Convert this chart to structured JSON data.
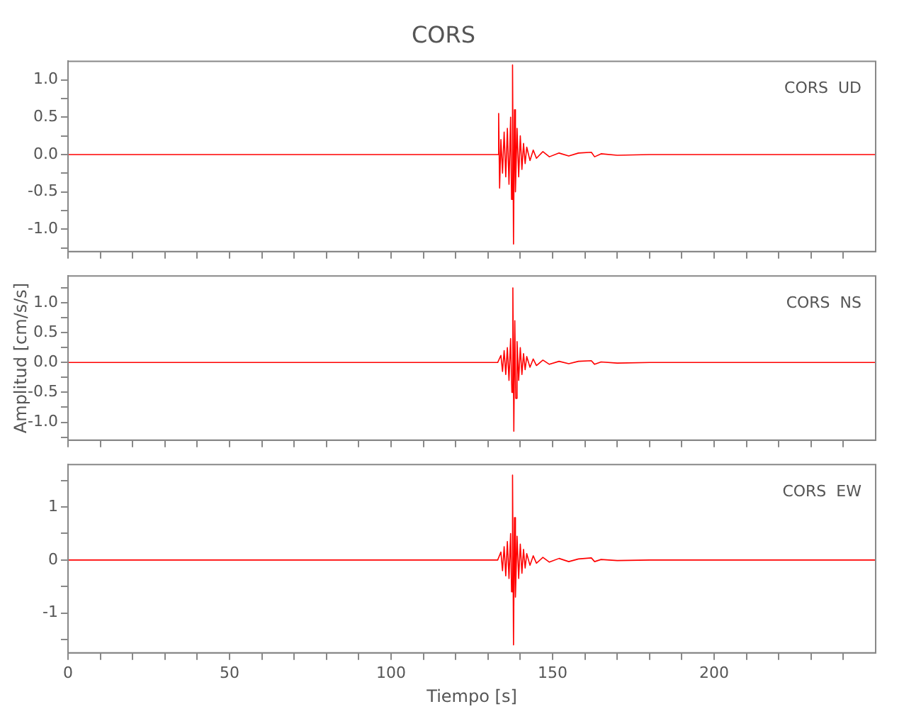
{
  "chart_data": [
    {
      "type": "line",
      "title": "CORS",
      "annotations": [
        "CORS  UD"
      ],
      "tick_labels": "y",
      "grid": false,
      "legend": false,
      "marker": "none",
      "x": [
        0,
        20,
        40,
        60,
        80,
        100,
        120,
        130,
        133,
        133.3,
        133.6,
        134,
        134.5,
        135,
        135.5,
        136,
        136.5,
        137,
        137.3,
        137.6,
        137.9,
        138.2,
        138.5,
        139,
        139.5,
        140,
        140.5,
        141,
        141.5,
        142,
        143,
        144,
        145,
        147,
        149,
        152,
        155,
        158,
        162,
        163,
        165,
        170,
        180,
        200,
        220,
        250
      ],
      "series": [
        {
          "color": "#ff0000",
          "values": [
            0,
            0,
            0,
            0,
            0,
            0,
            0,
            0,
            0,
            0.55,
            -0.45,
            0.2,
            -0.25,
            0.3,
            -0.3,
            0.35,
            -0.4,
            0.5,
            -0.6,
            1.2,
            -1.2,
            0.6,
            -0.5,
            0.35,
            -0.3,
            0.25,
            -0.2,
            0.15,
            -0.12,
            0.1,
            -0.08,
            0.06,
            -0.05,
            0.04,
            -0.03,
            0.02,
            -0.02,
            0.02,
            0.03,
            -0.03,
            0.01,
            -0.01,
            0,
            0,
            0,
            0
          ]
        }
      ],
      "xlim": [
        0,
        250
      ],
      "xticks": [
        0,
        {
          "value": 10,
          "label": null
        },
        {
          "value": 20,
          "label": null
        },
        {
          "value": 30,
          "label": null
        },
        {
          "value": 40,
          "label": null
        },
        50,
        {
          "value": 60,
          "label": null
        },
        {
          "value": 70,
          "label": null
        },
        {
          "value": 80,
          "label": null
        },
        {
          "value": 90,
          "label": null
        },
        100,
        {
          "value": 110,
          "label": null
        },
        {
          "value": 120,
          "label": null
        },
        {
          "value": 130,
          "label": null
        },
        {
          "value": 140,
          "label": null
        },
        150,
        {
          "value": 160,
          "label": null
        },
        {
          "value": 170,
          "label": null
        },
        {
          "value": 180,
          "label": null
        },
        {
          "value": 190,
          "label": null
        },
        200,
        {
          "value": 210,
          "label": null
        },
        {
          "value": 220,
          "label": null
        },
        {
          "value": 230,
          "label": null
        },
        {
          "value": 240,
          "label": null
        }
      ],
      "ylim": [
        -1.3,
        1.25
      ],
      "yticks": [
        {
          "value": -1.25,
          "label": null
        },
        {
          "value": -1,
          "label": "-1.0"
        },
        {
          "value": -0.75,
          "label": null
        },
        {
          "value": -0.5,
          "label": "-0.5"
        },
        {
          "value": -0.25,
          "label": null
        },
        {
          "value": 0,
          "label": "0.0"
        },
        {
          "value": 0.25,
          "label": null
        },
        {
          "value": 0.5,
          "label": "0.5"
        },
        {
          "value": 0.75,
          "label": null
        },
        {
          "value": 1,
          "label": "1.0"
        }
      ]
    },
    {
      "type": "line",
      "ylabel": "Amplitud [cm/s/s]",
      "annotations": [
        "CORS  NS"
      ],
      "tick_labels": "y",
      "grid": false,
      "legend": false,
      "marker": "none",
      "x": [
        0,
        20,
        40,
        60,
        80,
        100,
        120,
        130,
        133,
        134,
        134.5,
        135,
        135.5,
        136,
        136.5,
        137,
        137.4,
        137.7,
        138,
        138.3,
        138.6,
        139,
        139.5,
        140,
        140.5,
        141,
        141.5,
        142,
        143,
        144,
        145,
        147,
        149,
        152,
        155,
        158,
        162,
        163,
        165,
        170,
        180,
        200,
        220,
        250
      ],
      "series": [
        {
          "color": "#ff0000",
          "values": [
            0,
            0,
            0,
            0,
            0,
            0,
            0,
            0,
            0,
            0.12,
            -0.15,
            0.2,
            -0.2,
            0.25,
            -0.3,
            0.4,
            -0.5,
            1.25,
            -1.15,
            0.7,
            -0.6,
            0.35,
            -0.3,
            0.25,
            -0.2,
            0.15,
            -0.12,
            0.1,
            -0.08,
            0.06,
            -0.05,
            0.04,
            -0.03,
            0.02,
            -0.02,
            0.02,
            0.03,
            -0.03,
            0.01,
            -0.01,
            0,
            0,
            0,
            0
          ]
        }
      ],
      "xlim": [
        0,
        250
      ],
      "xticks": [
        0,
        {
          "value": 10,
          "label": null
        },
        {
          "value": 20,
          "label": null
        },
        {
          "value": 30,
          "label": null
        },
        {
          "value": 40,
          "label": null
        },
        50,
        {
          "value": 60,
          "label": null
        },
        {
          "value": 70,
          "label": null
        },
        {
          "value": 80,
          "label": null
        },
        {
          "value": 90,
          "label": null
        },
        100,
        {
          "value": 110,
          "label": null
        },
        {
          "value": 120,
          "label": null
        },
        {
          "value": 130,
          "label": null
        },
        {
          "value": 140,
          "label": null
        },
        150,
        {
          "value": 160,
          "label": null
        },
        {
          "value": 170,
          "label": null
        },
        {
          "value": 180,
          "label": null
        },
        {
          "value": 190,
          "label": null
        },
        200,
        {
          "value": 210,
          "label": null
        },
        {
          "value": 220,
          "label": null
        },
        {
          "value": 230,
          "label": null
        },
        {
          "value": 240,
          "label": null
        }
      ],
      "ylim": [
        -1.3,
        1.45
      ],
      "yticks": [
        {
          "value": -1.25,
          "label": null
        },
        {
          "value": -1,
          "label": "-1.0"
        },
        {
          "value": -0.75,
          "label": null
        },
        {
          "value": -0.5,
          "label": "-0.5"
        },
        {
          "value": -0.25,
          "label": null
        },
        {
          "value": 0,
          "label": "0.0"
        },
        {
          "value": 0.25,
          "label": null
        },
        {
          "value": 0.5,
          "label": "0.5"
        },
        {
          "value": 0.75,
          "label": null
        },
        {
          "value": 1,
          "label": "1.0"
        },
        {
          "value": 1.25,
          "label": null
        }
      ]
    },
    {
      "type": "line",
      "xlabel": "Tiempo [s]",
      "annotations": [
        "CORS  EW"
      ],
      "grid": false,
      "legend": false,
      "marker": "none",
      "x": [
        0,
        20,
        40,
        60,
        80,
        100,
        120,
        130,
        133,
        134,
        134.5,
        135,
        135.5,
        136,
        136.5,
        137,
        137.3,
        137.6,
        137.9,
        138.2,
        138.5,
        139,
        139.5,
        140,
        140.5,
        141,
        141.5,
        142,
        143,
        144,
        145,
        147,
        149,
        152,
        155,
        158,
        162,
        163,
        165,
        170,
        180,
        200,
        220,
        250
      ],
      "series": [
        {
          "color": "#ff0000",
          "values": [
            0,
            0,
            0,
            0,
            0,
            0,
            0,
            0,
            0,
            0.15,
            -0.2,
            0.25,
            -0.3,
            0.35,
            -0.35,
            0.5,
            -0.6,
            1.6,
            -1.6,
            0.8,
            -0.7,
            0.45,
            -0.35,
            0.3,
            -0.25,
            0.2,
            -0.15,
            0.12,
            -0.1,
            0.08,
            -0.06,
            0.05,
            -0.04,
            0.03,
            -0.03,
            0.02,
            0.04,
            -0.03,
            0.01,
            -0.01,
            0,
            0,
            0,
            0
          ]
        }
      ],
      "xlim": [
        0,
        250
      ],
      "xticks": [
        0,
        {
          "value": 10,
          "label": null
        },
        {
          "value": 20,
          "label": null
        },
        {
          "value": 30,
          "label": null
        },
        {
          "value": 40,
          "label": null
        },
        50,
        {
          "value": 60,
          "label": null
        },
        {
          "value": 70,
          "label": null
        },
        {
          "value": 80,
          "label": null
        },
        {
          "value": 90,
          "label": null
        },
        100,
        {
          "value": 110,
          "label": null
        },
        {
          "value": 120,
          "label": null
        },
        {
          "value": 130,
          "label": null
        },
        {
          "value": 140,
          "label": null
        },
        150,
        {
          "value": 160,
          "label": null
        },
        {
          "value": 170,
          "label": null
        },
        {
          "value": 180,
          "label": null
        },
        {
          "value": 190,
          "label": null
        },
        200,
        {
          "value": 210,
          "label": null
        },
        {
          "value": 220,
          "label": null
        },
        {
          "value": 230,
          "label": null
        },
        {
          "value": 240,
          "label": null
        }
      ],
      "ylim": [
        -1.75,
        1.8
      ],
      "yticks": [
        {
          "value": -1.5,
          "label": null
        },
        -1,
        {
          "value": -0.5,
          "label": null
        },
        0,
        {
          "value": 0.5,
          "label": null
        },
        1,
        {
          "value": 1.5,
          "label": null
        }
      ]
    }
  ]
}
